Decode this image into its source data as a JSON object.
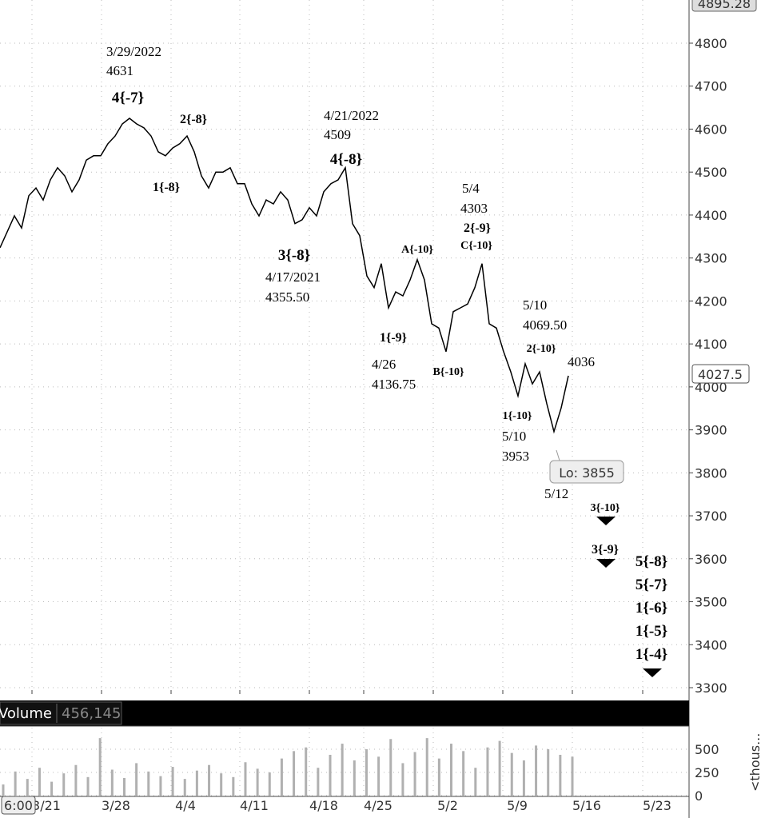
{
  "chart_data": [
    {
      "type": "line",
      "color": "#000000",
      "values": [
        4324,
        4361,
        4398,
        4370,
        4445,
        4463,
        4435,
        4482,
        4510,
        4491,
        4454,
        4482,
        4528,
        4538,
        4538,
        4566,
        4584,
        4612,
        4625,
        4612,
        4603,
        4584,
        4547,
        4538,
        4556,
        4566,
        4584,
        4547,
        4491,
        4463,
        4500,
        4500,
        4510,
        4473,
        4473,
        4426,
        4398,
        4435,
        4426,
        4454,
        4435,
        4380,
        4389,
        4417,
        4398,
        4454,
        4473,
        4482,
        4510,
        4380,
        4352,
        4258,
        4231,
        4287,
        4184,
        4221,
        4212,
        4249,
        4296,
        4249,
        4147,
        4137,
        4082,
        4175,
        4184,
        4193,
        4231,
        4287,
        4147,
        4137,
        4082,
        4035,
        3979,
        4054,
        4007,
        4035,
        3961,
        3896,
        3951,
        4026
      ],
      "ylim": [
        3285,
        4900
      ],
      "yticks": [
        3300,
        3400,
        3500,
        3600,
        3700,
        3800,
        3900,
        4000,
        4100,
        4200,
        4300,
        4400,
        4500,
        4600,
        4700,
        4800
      ],
      "xticks": [
        "3/21",
        "3/28",
        "4/4",
        "4/11",
        "4/18",
        "4/25",
        "5/2",
        "5/9",
        "5/16",
        "5/23"
      ],
      "grid": true,
      "price_labels": [
        "4895.28",
        "4027.5"
      ],
      "low_label": "Lo: 3855",
      "time_label": "6:00",
      "annotations": [
        "3/29/2022",
        "4631",
        "4{-7}",
        "2{-8}",
        "1{-8}",
        "4/21/2022",
        "4509",
        "4{-8}",
        "3{-8}",
        "4/17/2021",
        "4355.50",
        "5/4",
        "4303",
        "2{-9}",
        "C{-10}",
        "A{-10}",
        "1{-9}",
        "4/26",
        "4136.75",
        "B{-10}",
        "5/10",
        "4069.50",
        "2{-10}",
        "4036",
        "1{-10}",
        "5/10",
        "3953",
        "5/12",
        "3{-10}",
        "3{-9}",
        "5{-8}",
        "5{-7}",
        "1{-6}",
        "1{-5}",
        "1{-4}"
      ]
    },
    {
      "type": "bar",
      "title": "Volume",
      "value_label": "456,145",
      "color": "#b0b0b0",
      "axis_label": "<thous...",
      "values": [
        120,
        260,
        180,
        300,
        150,
        240,
        330,
        200,
        620,
        280,
        190,
        350,
        260,
        210,
        310,
        180,
        270,
        330,
        240,
        200,
        360,
        290,
        250,
        400,
        480,
        520,
        300,
        440,
        560,
        380,
        500,
        420,
        610,
        350,
        470,
        620,
        400,
        560,
        480,
        300,
        520,
        590,
        460,
        380,
        540,
        500,
        440,
        420
      ],
      "ylim": [
        0,
        733
      ],
      "yticks": [
        0,
        250,
        500
      ]
    }
  ]
}
